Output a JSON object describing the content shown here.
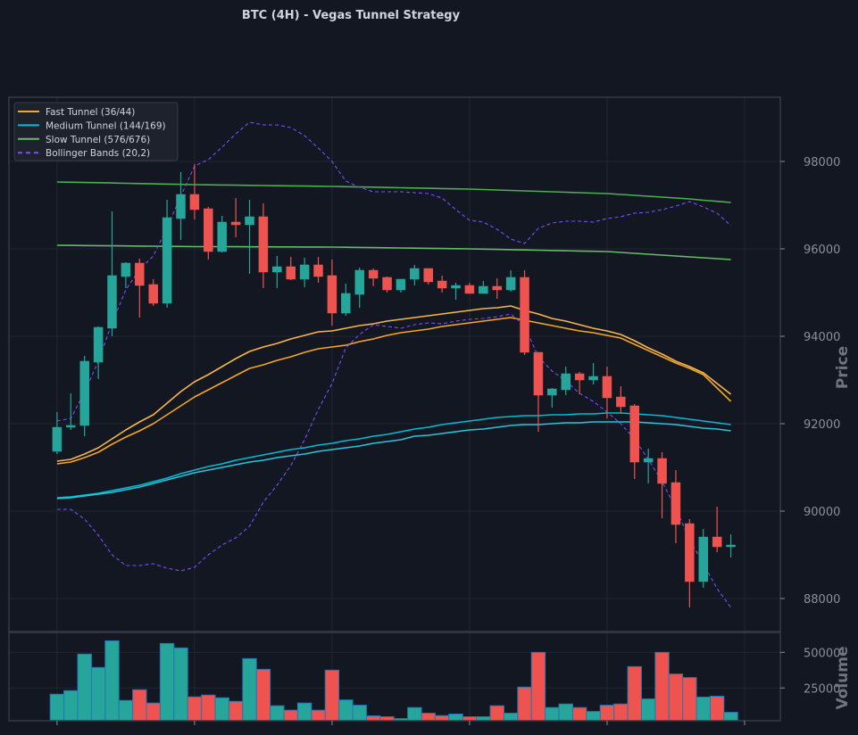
{
  "chart_data": {
    "type": "candlestick",
    "title": "BTC (4H) - Vegas Tunnel Strategy",
    "ylabel": "Price",
    "volume_label": "Volume",
    "ylim": [
      87245,
      99469
    ],
    "volume_ylim": [
      2000,
      64000
    ],
    "xlim": [
      -3.5,
      52.6
    ],
    "x_ticks": [
      0,
      10,
      20,
      30,
      40,
      50
    ],
    "y_ticks": [
      88000,
      90000,
      92000,
      94000,
      96000,
      98000
    ],
    "y_tick_labels": [
      "88000",
      "90000",
      "92000",
      "94000",
      "96000",
      "98000"
    ],
    "volume_ticks": [
      25000,
      50000
    ],
    "volume_tick_labels": [
      "25000",
      "50000"
    ],
    "grid": true,
    "legend_position": "top-left",
    "colors": {
      "up": "#26a69a",
      "down": "#ef5350",
      "fast": "#f5a623",
      "fast_light": "#f7b54a",
      "medium": "#00bcd4",
      "medium_light": "#29c4d9",
      "slow": "#4caf50",
      "bollinger": "#7c4dff",
      "volume_edge": "#1f77b4",
      "background": "#131722",
      "grid": "#222633"
    },
    "legend": [
      {
        "label": "Fast Tunnel (36/44)",
        "color": "#f5a623",
        "style": "solid"
      },
      {
        "label": "Medium Tunnel (144/169)",
        "color": "#00bcd4",
        "style": "solid"
      },
      {
        "label": "Slow Tunnel (576/676)",
        "color": "#66bb6a",
        "style": "solid"
      },
      {
        "label": "Bollinger Bands (20,2)",
        "color": "#7c4dff",
        "style": "dashed"
      }
    ],
    "ohlc": [
      [
        91367,
        92265,
        91306,
        91918
      ],
      [
        91920,
        92694,
        91857,
        91960
      ],
      [
        91959,
        93551,
        91714,
        93429
      ],
      [
        93408,
        94224,
        93020,
        94204
      ],
      [
        94184,
        96857,
        94000,
        95388
      ],
      [
        95367,
        95694,
        95102,
        95674
      ],
      [
        95674,
        95776,
        94429,
        95163
      ],
      [
        95184,
        95306,
        94694,
        94755
      ],
      [
        94755,
        97122,
        94653,
        96714
      ],
      [
        96694,
        97755,
        96204,
        97245
      ],
      [
        97245,
        97939,
        96673,
        96898
      ],
      [
        96918,
        96959,
        95755,
        95939
      ],
      [
        95939,
        96755,
        95918,
        96612
      ],
      [
        96612,
        97163,
        96265,
        96551
      ],
      [
        96551,
        97122,
        95429,
        96735
      ],
      [
        96735,
        97041,
        95102,
        95469
      ],
      [
        95469,
        95837,
        95102,
        95592
      ],
      [
        95592,
        95816,
        95286,
        95306
      ],
      [
        95306,
        95796,
        95122,
        95633
      ],
      [
        95633,
        95816,
        95224,
        95367
      ],
      [
        95388,
        95755,
        94245,
        94531
      ],
      [
        94531,
        95204,
        94469,
        94980
      ],
      [
        94959,
        95571,
        94653,
        95510
      ],
      [
        95510,
        95551,
        95143,
        95327
      ],
      [
        95347,
        95367,
        95000,
        95061
      ],
      [
        95061,
        95306,
        95000,
        95306
      ],
      [
        95306,
        95633,
        95163,
        95551
      ],
      [
        95551,
        95551,
        95184,
        95245
      ],
      [
        95265,
        95388,
        95000,
        95102
      ],
      [
        95102,
        95224,
        94837,
        95163
      ],
      [
        95163,
        95224,
        94980,
        94980
      ],
      [
        94980,
        95265,
        94980,
        95143
      ],
      [
        95143,
        95327,
        94857,
        95061
      ],
      [
        95061,
        95510,
        95020,
        95347
      ],
      [
        95347,
        95510,
        93571,
        93633
      ],
      [
        93633,
        93633,
        91816,
        92653
      ],
      [
        92653,
        92816,
        92367,
        92796
      ],
      [
        92776,
        93306,
        92653,
        93143
      ],
      [
        93143,
        93184,
        92673,
        93000
      ],
      [
        93000,
        93388,
        92898,
        93082
      ],
      [
        93082,
        93306,
        92122,
        92592
      ],
      [
        92612,
        92857,
        92224,
        92388
      ],
      [
        92408,
        92449,
        90735,
        91122
      ],
      [
        91122,
        91429,
        90633,
        91204
      ],
      [
        91204,
        91347,
        89837,
        90633
      ],
      [
        90653,
        90939,
        89265,
        89694
      ],
      [
        89714,
        89816,
        87796,
        88388
      ],
      [
        88388,
        89592,
        88245,
        89408
      ],
      [
        89408,
        90102,
        89061,
        89184
      ],
      [
        89184,
        89469,
        88939,
        89224
      ]
    ],
    "volume": [
      20600,
      23100,
      48750,
      39400,
      58100,
      16250,
      23750,
      14400,
      56250,
      53100,
      18750,
      20000,
      18100,
      15600,
      45600,
      38100,
      12500,
      9400,
      14400,
      9400,
      37500,
      16600,
      12900,
      5400,
      4800,
      3500,
      11250,
      7300,
      5600,
      6700,
      4800,
      4800,
      12500,
      7300,
      25600,
      50000,
      11250,
      13750,
      11250,
      8500,
      12900,
      13750,
      40000,
      17300,
      50000,
      34800,
      32300,
      18600,
      19200,
      7900
    ],
    "series": [
      {
        "name": "Fast Tunnel EMA36",
        "color": "#f7b54a",
        "values": [
          91143,
          91184,
          91306,
          91449,
          91653,
          91857,
          92041,
          92204,
          92469,
          92735,
          92959,
          93122,
          93306,
          93490,
          93653,
          93755,
          93837,
          93939,
          94020,
          94102,
          94122,
          94184,
          94245,
          94286,
          94347,
          94388,
          94429,
          94469,
          94510,
          94551,
          94592,
          94633,
          94653,
          94694,
          94592,
          94510,
          94408,
          94347,
          94265,
          94184,
          94122,
          94041,
          93898,
          93735,
          93592,
          93429,
          93306,
          93163,
          92918,
          92673
        ]
      },
      {
        "name": "Fast Tunnel EMA44",
        "color": "#f5a623",
        "values": [
          91082,
          91122,
          91225,
          91347,
          91531,
          91694,
          91837,
          92000,
          92204,
          92408,
          92612,
          92776,
          92939,
          93102,
          93265,
          93347,
          93449,
          93531,
          93633,
          93714,
          93755,
          93796,
          93878,
          93939,
          94020,
          94082,
          94122,
          94163,
          94224,
          94265,
          94306,
          94347,
          94388,
          94429,
          94367,
          94306,
          94245,
          94184,
          94122,
          94082,
          94020,
          93959,
          93816,
          93673,
          93531,
          93388,
          93265,
          93122,
          92816,
          92510
        ]
      },
      {
        "name": "Medium Tunnel EMA144",
        "color": "#00bcd4",
        "values": [
          90306,
          90327,
          90368,
          90408,
          90470,
          90531,
          90592,
          90674,
          90755,
          90857,
          90939,
          91021,
          91082,
          91163,
          91225,
          91286,
          91347,
          91408,
          91449,
          91510,
          91551,
          91612,
          91653,
          91714,
          91755,
          91817,
          91878,
          91919,
          91980,
          92021,
          92061,
          92102,
          92143,
          92163,
          92184,
          92184,
          92204,
          92204,
          92225,
          92225,
          92245,
          92245,
          92225,
          92204,
          92184,
          92143,
          92102,
          92061,
          92021,
          91980
        ]
      },
      {
        "name": "Medium Tunnel EMA169",
        "color": "#29c4d9",
        "values": [
          90286,
          90306,
          90347,
          90388,
          90429,
          90490,
          90551,
          90633,
          90714,
          90796,
          90878,
          90939,
          91000,
          91061,
          91123,
          91163,
          91225,
          91265,
          91306,
          91368,
          91408,
          91449,
          91490,
          91551,
          91592,
          91633,
          91714,
          91735,
          91776,
          91817,
          91857,
          91878,
          91919,
          91959,
          91980,
          91980,
          92000,
          92021,
          92021,
          92041,
          92041,
          92041,
          92041,
          92021,
          92000,
          91980,
          91939,
          91898,
          91878,
          91837
        ]
      },
      {
        "name": "Slow Tunnel EMA576",
        "color": "#4caf50",
        "values": [
          97531,
          97525,
          97519,
          97513,
          97507,
          97500,
          97494,
          97488,
          97482,
          97475,
          97469,
          97465,
          97461,
          97457,
          97453,
          97449,
          97445,
          97441,
          97437,
          97433,
          97429,
          97423,
          97417,
          97411,
          97404,
          97398,
          97392,
          97386,
          97380,
          97373,
          97367,
          97357,
          97347,
          97337,
          97326,
          97316,
          97306,
          97296,
          97286,
          97275,
          97265,
          97245,
          97224,
          97204,
          97184,
          97163,
          97143,
          97112,
          97087,
          97061
        ]
      },
      {
        "name": "Slow Tunnel EMA676",
        "color": "#66bb6a",
        "values": [
          96082,
          96079,
          96076,
          96073,
          96070,
          96067,
          96063,
          96060,
          96057,
          96054,
          96051,
          96050,
          96049,
          96048,
          96047,
          96046,
          96045,
          96044,
          96043,
          96042,
          96041,
          96037,
          96033,
          96029,
          96025,
          96020,
          96016,
          96012,
          96008,
          96004,
          96000,
          95994,
          95988,
          95982,
          95976,
          95970,
          95963,
          95957,
          95951,
          95945,
          95939,
          95918,
          95898,
          95878,
          95857,
          95837,
          95816,
          95796,
          95776,
          95755
        ]
      },
      {
        "name": "Bollinger Upper",
        "color": "#7c4dff",
        "dashed": true,
        "values": [
          92061,
          92122,
          92714,
          93429,
          94306,
          95061,
          95531,
          95837,
          96490,
          97204,
          97898,
          98041,
          98327,
          98633,
          98898,
          98837,
          98837,
          98776,
          98592,
          98306,
          98000,
          97551,
          97408,
          97306,
          97306,
          97306,
          97286,
          97265,
          97163,
          96898,
          96653,
          96612,
          96449,
          96224,
          96122,
          96469,
          96592,
          96633,
          96633,
          96612,
          96694,
          96735,
          96816,
          96837,
          96898,
          96980,
          97082,
          96959,
          96816,
          96531
        ]
      },
      {
        "name": "Bollinger Lower",
        "color": "#7c4dff",
        "dashed": true,
        "values": [
          90041,
          90041,
          89816,
          89449,
          89000,
          88755,
          88755,
          88796,
          88694,
          88633,
          88714,
          89000,
          89224,
          89388,
          89653,
          90204,
          90592,
          91041,
          91633,
          92327,
          92918,
          93735,
          94041,
          94265,
          94224,
          94184,
          94265,
          94306,
          94286,
          94347,
          94388,
          94408,
          94449,
          94510,
          94245,
          93531,
          93204,
          92980,
          92694,
          92510,
          92265,
          92000,
          91653,
          91184,
          90673,
          90061,
          89347,
          88796,
          88224,
          87796
        ]
      }
    ]
  }
}
